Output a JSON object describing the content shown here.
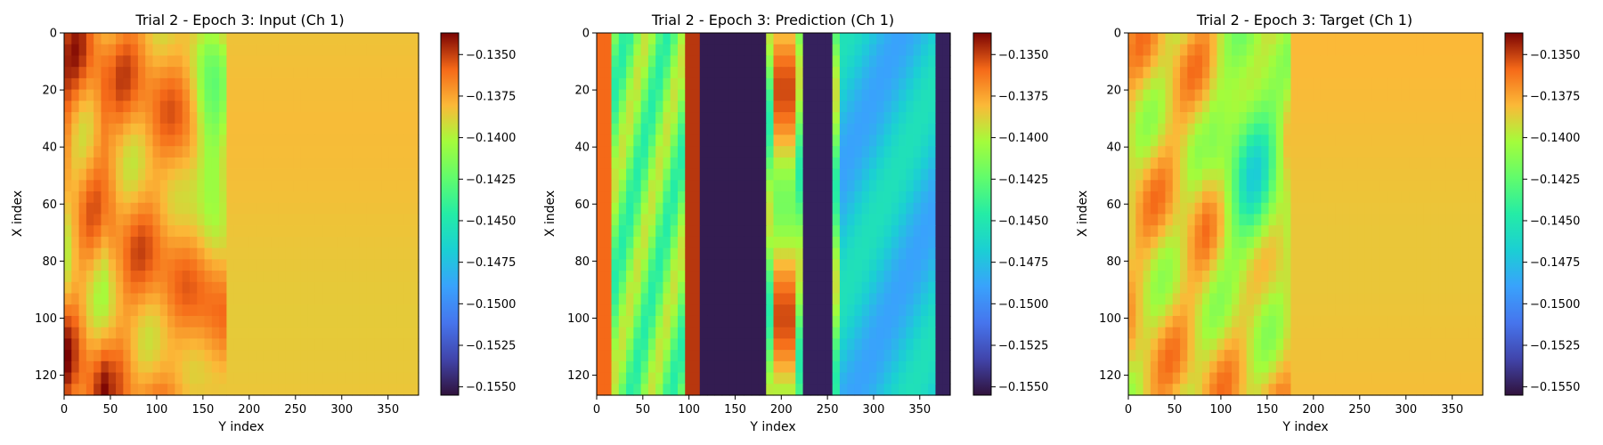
{
  "colormap": "turbo",
  "chart_data": [
    {
      "type": "heatmap",
      "title": "Trial 2 - Epoch 3: Input (Ch 1)",
      "xlabel": "Y index",
      "ylabel": "X index",
      "xlim": [
        0,
        383
      ],
      "ylim": [
        127,
        0
      ],
      "x_ticks": [
        "0",
        "50",
        "100",
        "150",
        "200",
        "250",
        "300",
        "350"
      ],
      "y_ticks": [
        "0",
        "20",
        "40",
        "60",
        "80",
        "100",
        "120"
      ],
      "colorbar": {
        "vmin": -0.1555,
        "vmax": -0.1337,
        "ticks": [
          "−0.1350",
          "−0.1375",
          "−0.1400",
          "−0.1425",
          "−0.1450",
          "−0.1475",
          "−0.1500",
          "−0.1525",
          "−0.1550"
        ]
      },
      "field": "input"
    },
    {
      "type": "heatmap",
      "title": "Trial 2 - Epoch 3: Prediction (Ch 1)",
      "xlabel": "Y index",
      "ylabel": "X index",
      "xlim": [
        0,
        383
      ],
      "ylim": [
        127,
        0
      ],
      "x_ticks": [
        "0",
        "50",
        "100",
        "150",
        "200",
        "250",
        "300",
        "350"
      ],
      "y_ticks": [
        "0",
        "20",
        "40",
        "60",
        "80",
        "100",
        "120"
      ],
      "colorbar": {
        "vmin": -0.1555,
        "vmax": -0.1337,
        "ticks": [
          "−0.1350",
          "−0.1375",
          "−0.1400",
          "−0.1425",
          "−0.1450",
          "−0.1475",
          "−0.1500",
          "−0.1525",
          "−0.1550"
        ]
      },
      "field": "prediction"
    },
    {
      "type": "heatmap",
      "title": "Trial 2 - Epoch 3: Target (Ch 1)",
      "xlabel": "Y index",
      "ylabel": "X index",
      "xlim": [
        0,
        383
      ],
      "ylim": [
        127,
        0
      ],
      "x_ticks": [
        "0",
        "50",
        "100",
        "150",
        "200",
        "250",
        "300",
        "350"
      ],
      "y_ticks": [
        "0",
        "20",
        "40",
        "60",
        "80",
        "100",
        "120"
      ],
      "colorbar": {
        "vmin": -0.1555,
        "vmax": -0.1337,
        "ticks": [
          "−0.1350",
          "−0.1375",
          "−0.1400",
          "−0.1425",
          "−0.1450",
          "−0.1475",
          "−0.1500",
          "−0.1525",
          "−0.1550"
        ]
      },
      "field": "target"
    }
  ]
}
